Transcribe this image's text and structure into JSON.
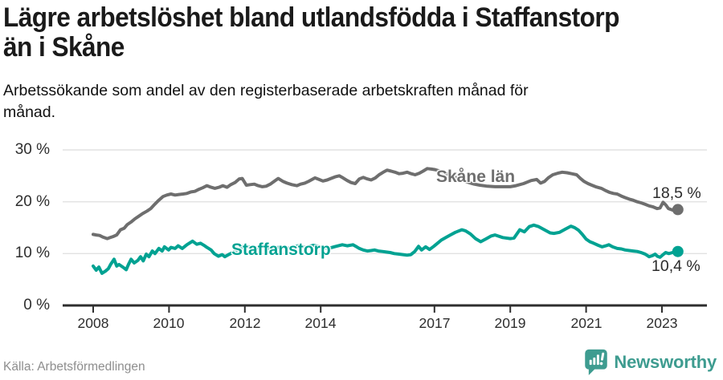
{
  "header": {
    "title_lines": [
      "Lägre arbetslöshet bland utlandsfödda i Staffanstorp",
      "än i Skåne"
    ],
    "subtitle_lines": [
      "Arbetssökande som andel av den registerbaserade arbetskraften månad för",
      "månad."
    ]
  },
  "chart_data": {
    "type": "line",
    "title": "Lägre arbetslöshet bland utlandsfödda i Staffanstorp än i Skåne",
    "subtitle": "Arbetssökande som andel av den registerbaserade arbetskraften månad för månad.",
    "xlabel": "",
    "ylabel": "",
    "ylim": [
      0,
      30
    ],
    "x_range": [
      2008.0,
      2023.42
    ],
    "grid": "horizontal",
    "colors": {
      "skane": "#6e6e6e",
      "staffanstorp": "#00a292",
      "axis": "#2e2e2e",
      "gridline": "#e2e2e2"
    },
    "y_ticks": [
      {
        "value": 0,
        "label": "0 %"
      },
      {
        "value": 10,
        "label": "10 %"
      },
      {
        "value": 20,
        "label": "20 %"
      },
      {
        "value": 30,
        "label": "30 %"
      }
    ],
    "x_ticks": [
      {
        "value": 2008,
        "label": "2008"
      },
      {
        "value": 2010,
        "label": "2010"
      },
      {
        "value": 2012,
        "label": "2012"
      },
      {
        "value": 2014,
        "label": "2014"
      },
      {
        "value": 2017,
        "label": "2017"
      },
      {
        "value": 2019,
        "label": "2019"
      },
      {
        "value": 2021,
        "label": "2021"
      },
      {
        "value": 2023,
        "label": "2023"
      }
    ],
    "series": [
      {
        "name": "Skåne län",
        "color": "#6e6e6e",
        "end_label": "18,5 %",
        "end_value": 18.5,
        "points": [
          [
            2008.0,
            13.7
          ],
          [
            2008.08,
            13.6
          ],
          [
            2008.17,
            13.5
          ],
          [
            2008.25,
            13.2
          ],
          [
            2008.37,
            12.9
          ],
          [
            2008.45,
            13.1
          ],
          [
            2008.53,
            13.3
          ],
          [
            2008.62,
            13.6
          ],
          [
            2008.72,
            14.6
          ],
          [
            2008.82,
            14.9
          ],
          [
            2008.9,
            15.6
          ],
          [
            2009.0,
            16.1
          ],
          [
            2009.1,
            16.7
          ],
          [
            2009.2,
            17.2
          ],
          [
            2009.3,
            17.7
          ],
          [
            2009.42,
            18.2
          ],
          [
            2009.52,
            18.7
          ],
          [
            2009.62,
            19.5
          ],
          [
            2009.73,
            20.3
          ],
          [
            2009.84,
            21.0
          ],
          [
            2009.94,
            21.3
          ],
          [
            2010.05,
            21.5
          ],
          [
            2010.16,
            21.3
          ],
          [
            2010.26,
            21.4
          ],
          [
            2010.37,
            21.5
          ],
          [
            2010.47,
            21.6
          ],
          [
            2010.58,
            21.9
          ],
          [
            2010.68,
            22.0
          ],
          [
            2010.79,
            22.4
          ],
          [
            2010.89,
            22.7
          ],
          [
            2011.0,
            23.1
          ],
          [
            2011.11,
            22.8
          ],
          [
            2011.21,
            22.6
          ],
          [
            2011.32,
            22.8
          ],
          [
            2011.42,
            23.1
          ],
          [
            2011.53,
            22.8
          ],
          [
            2011.63,
            23.3
          ],
          [
            2011.74,
            23.7
          ],
          [
            2011.85,
            24.4
          ],
          [
            2011.93,
            24.5
          ],
          [
            2012.04,
            23.2
          ],
          [
            2012.14,
            23.3
          ],
          [
            2012.25,
            23.4
          ],
          [
            2012.35,
            23.1
          ],
          [
            2012.46,
            22.9
          ],
          [
            2012.56,
            23.0
          ],
          [
            2012.67,
            23.4
          ],
          [
            2012.8,
            24.1
          ],
          [
            2012.88,
            24.5
          ],
          [
            2013.01,
            23.9
          ],
          [
            2013.11,
            23.6
          ],
          [
            2013.24,
            23.3
          ],
          [
            2013.37,
            23.1
          ],
          [
            2013.47,
            23.4
          ],
          [
            2013.58,
            23.6
          ],
          [
            2013.7,
            24.0
          ],
          [
            2013.85,
            24.6
          ],
          [
            2013.96,
            24.3
          ],
          [
            2014.06,
            24.0
          ],
          [
            2014.17,
            24.2
          ],
          [
            2014.27,
            24.5
          ],
          [
            2014.38,
            24.8
          ],
          [
            2014.49,
            25.0
          ],
          [
            2014.59,
            24.6
          ],
          [
            2014.7,
            24.1
          ],
          [
            2014.8,
            23.7
          ],
          [
            2014.91,
            23.5
          ],
          [
            2015.02,
            24.4
          ],
          [
            2015.12,
            24.7
          ],
          [
            2015.23,
            24.4
          ],
          [
            2015.33,
            24.2
          ],
          [
            2015.44,
            24.6
          ],
          [
            2015.54,
            25.2
          ],
          [
            2015.65,
            25.7
          ],
          [
            2015.75,
            26.1
          ],
          [
            2015.86,
            25.9
          ],
          [
            2015.96,
            25.7
          ],
          [
            2016.07,
            25.4
          ],
          [
            2016.17,
            25.5
          ],
          [
            2016.28,
            25.7
          ],
          [
            2016.39,
            25.4
          ],
          [
            2016.49,
            25.2
          ],
          [
            2016.6,
            25.5
          ],
          [
            2016.7,
            25.9
          ],
          [
            2016.81,
            26.4
          ],
          [
            2016.92,
            26.3
          ],
          [
            2017.02,
            26.2
          ],
          [
            2017.15,
            25.9
          ],
          [
            2017.3,
            25.5
          ],
          [
            2017.5,
            24.9
          ],
          [
            2017.7,
            24.3
          ],
          [
            2017.9,
            23.7
          ],
          [
            2018.05,
            23.4
          ],
          [
            2018.2,
            23.2
          ],
          [
            2018.4,
            23.0
          ],
          [
            2018.6,
            22.9
          ],
          [
            2018.8,
            22.9
          ],
          [
            2019.0,
            22.9
          ],
          [
            2019.15,
            23.1
          ],
          [
            2019.35,
            23.5
          ],
          [
            2019.55,
            24.1
          ],
          [
            2019.7,
            24.3
          ],
          [
            2019.8,
            23.6
          ],
          [
            2019.9,
            23.9
          ],
          [
            2020.0,
            24.6
          ],
          [
            2020.12,
            25.2
          ],
          [
            2020.25,
            25.5
          ],
          [
            2020.37,
            25.7
          ],
          [
            2020.5,
            25.6
          ],
          [
            2020.62,
            25.4
          ],
          [
            2020.75,
            25.2
          ],
          [
            2020.85,
            24.5
          ],
          [
            2020.95,
            23.9
          ],
          [
            2021.05,
            23.5
          ],
          [
            2021.15,
            23.2
          ],
          [
            2021.25,
            22.9
          ],
          [
            2021.4,
            22.6
          ],
          [
            2021.5,
            22.2
          ],
          [
            2021.62,
            21.8
          ],
          [
            2021.72,
            21.6
          ],
          [
            2021.82,
            21.5
          ],
          [
            2021.93,
            21.1
          ],
          [
            2022.03,
            20.8
          ],
          [
            2022.14,
            20.5
          ],
          [
            2022.24,
            20.3
          ],
          [
            2022.35,
            20.0
          ],
          [
            2022.45,
            19.8
          ],
          [
            2022.56,
            19.5
          ],
          [
            2022.66,
            19.2
          ],
          [
            2022.77,
            19.0
          ],
          [
            2022.87,
            18.7
          ],
          [
            2022.95,
            18.8
          ],
          [
            2023.03,
            19.9
          ],
          [
            2023.1,
            19.4
          ],
          [
            2023.17,
            18.7
          ],
          [
            2023.28,
            18.4
          ],
          [
            2023.42,
            18.5
          ]
        ]
      },
      {
        "name": "Staffanstorp",
        "color": "#00a292",
        "end_label": "10,4 %",
        "end_value": 10.4,
        "points": [
          [
            2008.0,
            7.6
          ],
          [
            2008.08,
            6.8
          ],
          [
            2008.15,
            7.4
          ],
          [
            2008.23,
            6.2
          ],
          [
            2008.32,
            6.6
          ],
          [
            2008.4,
            7.1
          ],
          [
            2008.46,
            7.9
          ],
          [
            2008.55,
            8.9
          ],
          [
            2008.62,
            7.6
          ],
          [
            2008.68,
            7.9
          ],
          [
            2008.78,
            7.4
          ],
          [
            2008.87,
            6.9
          ],
          [
            2008.93,
            7.9
          ],
          [
            2009.0,
            8.9
          ],
          [
            2009.08,
            8.2
          ],
          [
            2009.18,
            8.7
          ],
          [
            2009.25,
            9.4
          ],
          [
            2009.32,
            8.6
          ],
          [
            2009.4,
            9.9
          ],
          [
            2009.47,
            9.4
          ],
          [
            2009.56,
            10.5
          ],
          [
            2009.63,
            10.0
          ],
          [
            2009.73,
            11.0
          ],
          [
            2009.82,
            10.5
          ],
          [
            2009.88,
            11.3
          ],
          [
            2009.99,
            10.7
          ],
          [
            2010.05,
            11.2
          ],
          [
            2010.16,
            11.0
          ],
          [
            2010.24,
            11.5
          ],
          [
            2010.35,
            11.0
          ],
          [
            2010.47,
            11.7
          ],
          [
            2010.62,
            12.4
          ],
          [
            2010.73,
            11.8
          ],
          [
            2010.83,
            12.0
          ],
          [
            2010.94,
            11.5
          ],
          [
            2011.0,
            11.2
          ],
          [
            2011.11,
            10.7
          ],
          [
            2011.19,
            10.0
          ],
          [
            2011.3,
            9.5
          ],
          [
            2011.4,
            9.8
          ],
          [
            2011.47,
            9.4
          ],
          [
            2011.57,
            9.8
          ],
          [
            2011.68,
            10.2
          ],
          [
            2011.78,
            10.6
          ],
          [
            2011.89,
            11.0
          ],
          [
            2011.99,
            11.6
          ],
          [
            2012.1,
            11.3
          ],
          [
            2012.3,
            11.1
          ],
          [
            2012.5,
            11.4
          ],
          [
            2012.7,
            10.9
          ],
          [
            2012.95,
            11.3
          ],
          [
            2013.2,
            11.0
          ],
          [
            2013.4,
            11.5
          ],
          [
            2013.6,
            11.2
          ],
          [
            2013.8,
            11.6
          ],
          [
            2014.0,
            11.3
          ],
          [
            2014.2,
            11.0
          ],
          [
            2014.4,
            11.4
          ],
          [
            2014.57,
            11.7
          ],
          [
            2014.7,
            11.5
          ],
          [
            2014.85,
            11.7
          ],
          [
            2014.95,
            11.3
          ],
          [
            2015.02,
            11.0
          ],
          [
            2015.12,
            10.7
          ],
          [
            2015.23,
            10.5
          ],
          [
            2015.33,
            10.6
          ],
          [
            2015.42,
            10.7
          ],
          [
            2015.52,
            10.5
          ],
          [
            2015.63,
            10.4
          ],
          [
            2015.73,
            10.3
          ],
          [
            2015.83,
            10.2
          ],
          [
            2015.94,
            10.0
          ],
          [
            2016.07,
            9.9
          ],
          [
            2016.17,
            9.8
          ],
          [
            2016.28,
            9.7
          ],
          [
            2016.38,
            9.8
          ],
          [
            2016.48,
            10.4
          ],
          [
            2016.58,
            11.4
          ],
          [
            2016.66,
            10.7
          ],
          [
            2016.77,
            11.3
          ],
          [
            2016.87,
            10.8
          ],
          [
            2016.98,
            11.4
          ],
          [
            2017.08,
            12.0
          ],
          [
            2017.18,
            12.6
          ],
          [
            2017.3,
            13.1
          ],
          [
            2017.42,
            13.6
          ],
          [
            2017.55,
            14.1
          ],
          [
            2017.72,
            14.6
          ],
          [
            2017.82,
            14.4
          ],
          [
            2017.95,
            13.8
          ],
          [
            2018.08,
            12.9
          ],
          [
            2018.22,
            12.3
          ],
          [
            2018.35,
            12.8
          ],
          [
            2018.5,
            13.4
          ],
          [
            2018.6,
            13.6
          ],
          [
            2018.8,
            13.1
          ],
          [
            2019.0,
            12.9
          ],
          [
            2019.1,
            13.0
          ],
          [
            2019.25,
            14.6
          ],
          [
            2019.37,
            14.2
          ],
          [
            2019.5,
            15.2
          ],
          [
            2019.62,
            15.5
          ],
          [
            2019.75,
            15.2
          ],
          [
            2019.9,
            14.6
          ],
          [
            2020.05,
            14.0
          ],
          [
            2020.15,
            13.9
          ],
          [
            2020.3,
            14.1
          ],
          [
            2020.45,
            14.7
          ],
          [
            2020.6,
            15.3
          ],
          [
            2020.7,
            15.0
          ],
          [
            2020.8,
            14.5
          ],
          [
            2020.9,
            13.7
          ],
          [
            2021.0,
            12.8
          ],
          [
            2021.1,
            12.3
          ],
          [
            2021.2,
            12.0
          ],
          [
            2021.32,
            11.6
          ],
          [
            2021.42,
            11.3
          ],
          [
            2021.52,
            11.5
          ],
          [
            2021.6,
            11.7
          ],
          [
            2021.7,
            11.3
          ],
          [
            2021.82,
            11.0
          ],
          [
            2021.93,
            10.9
          ],
          [
            2022.03,
            10.7
          ],
          [
            2022.14,
            10.6
          ],
          [
            2022.24,
            10.5
          ],
          [
            2022.35,
            10.4
          ],
          [
            2022.45,
            10.2
          ],
          [
            2022.56,
            9.9
          ],
          [
            2022.66,
            9.4
          ],
          [
            2022.75,
            9.6
          ],
          [
            2022.82,
            9.9
          ],
          [
            2022.88,
            9.5
          ],
          [
            2022.95,
            9.3
          ],
          [
            2023.03,
            9.8
          ],
          [
            2023.1,
            10.2
          ],
          [
            2023.18,
            10.0
          ],
          [
            2023.28,
            10.2
          ],
          [
            2023.42,
            10.4
          ]
        ]
      }
    ]
  },
  "footer": {
    "source": "Källa: Arbetsförmedlingen",
    "brand": "Newsworthy"
  }
}
